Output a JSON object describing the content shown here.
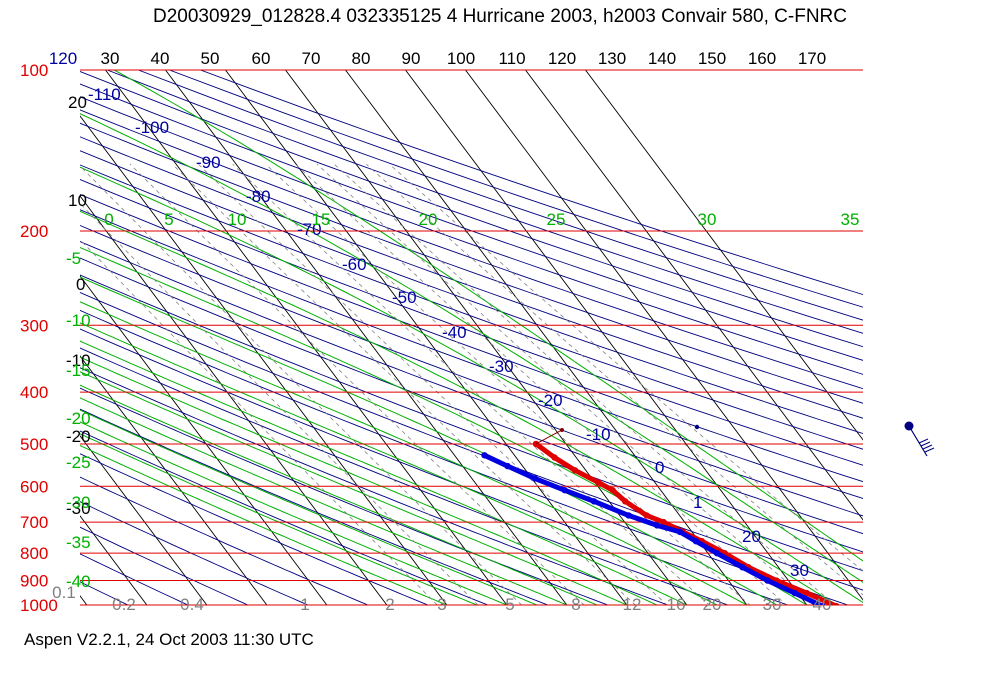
{
  "header": {
    "title": "D20030929_012828.4 032335125 4 Hurricane 2003, h2003 Convair 580, C-FNRC"
  },
  "footer": {
    "text": "Aspen V2.2.1, 24 Oct 2003  11:30 UTC"
  },
  "colors": {
    "isobar": "#e00000",
    "isotherm": "#000000",
    "dry_adiabat": "#000080",
    "moist_adiabat": "#00b000",
    "mixing_ratio": "#808080",
    "temperature": "#e00000",
    "dewpoint": "#0000e0",
    "wind_barb": "#000080",
    "pressure_label": "#e00000",
    "theta_label": "#0000a0",
    "thetae_label": "#00b000",
    "mixratio_label": "#808080"
  },
  "chart_data": {
    "type": "skew-t log-p",
    "pressure_ticks": [
      "100",
      "200",
      "300",
      "400",
      "500",
      "600",
      "700",
      "800",
      "900",
      "1000"
    ],
    "pressure_values_hpa": [
      100,
      200,
      300,
      400,
      500,
      600,
      700,
      800,
      900,
      1000
    ],
    "top_temperature_ticks": [
      "120",
      "30",
      "40",
      "50",
      "60",
      "70",
      "80",
      "90",
      "100",
      "110",
      "120",
      "130",
      "140",
      "150",
      "160",
      "170"
    ],
    "left_temperature_labels": [
      "20",
      "10",
      "0",
      "-10",
      "-20",
      "-30"
    ],
    "dry_adiabat_labels": [
      "-110",
      "-100",
      "-90",
      "-80",
      "-70",
      "-60",
      "-50",
      "-40",
      "-30",
      "-20",
      "-10",
      "0",
      "1",
      "20",
      "30"
    ],
    "moist_adiabat_top_labels": [
      "0",
      "5",
      "10",
      "15",
      "20",
      "25",
      "30",
      "35"
    ],
    "moist_adiabat_left_labels": [
      "-5",
      "-10",
      "-15",
      "-20",
      "-25",
      "-30",
      "-35",
      "-40"
    ],
    "mixing_ratio_labels": [
      "0.1",
      "0.2",
      "0.4",
      "1",
      "2",
      "3",
      "5",
      "8",
      "12",
      "16",
      "20",
      "30",
      "40"
    ],
    "series": [
      {
        "name": "",
        "kind": "temperature",
        "points": [
          {
            "p": 500,
            "t": -5.0
          },
          {
            "p": 530,
            "t": -3.6
          },
          {
            "p": 560,
            "t": -1.8
          },
          {
            "p": 590,
            "t": 0.6
          },
          {
            "p": 610,
            "t": 2.0
          },
          {
            "p": 640,
            "t": 2.7
          },
          {
            "p": 680,
            "t": 4.5
          },
          {
            "p": 700,
            "t": 6.5
          },
          {
            "p": 730,
            "t": 8.5
          },
          {
            "p": 760,
            "t": 10.5
          },
          {
            "p": 800,
            "t": 12.8
          },
          {
            "p": 850,
            "t": 15.0
          },
          {
            "p": 900,
            "t": 18.0
          },
          {
            "p": 950,
            "t": 21.5
          },
          {
            "p": 1005,
            "t": 24.8
          }
        ]
      },
      {
        "name": "",
        "kind": "dewpoint",
        "points": [
          {
            "p": 525,
            "t": -15.0
          },
          {
            "p": 550,
            "t": -12.5
          },
          {
            "p": 580,
            "t": -9.5
          },
          {
            "p": 610,
            "t": -6.0
          },
          {
            "p": 640,
            "t": -2.5
          },
          {
            "p": 680,
            "t": 1.5
          },
          {
            "p": 710,
            "t": 5.0
          },
          {
            "p": 730,
            "t": 8.0
          },
          {
            "p": 760,
            "t": 9.5
          },
          {
            "p": 800,
            "t": 11.5
          },
          {
            "p": 850,
            "t": 14.0
          },
          {
            "p": 900,
            "t": 16.5
          },
          {
            "p": 950,
            "t": 19.5
          },
          {
            "p": 1005,
            "t": 22.5
          }
        ]
      }
    ]
  }
}
